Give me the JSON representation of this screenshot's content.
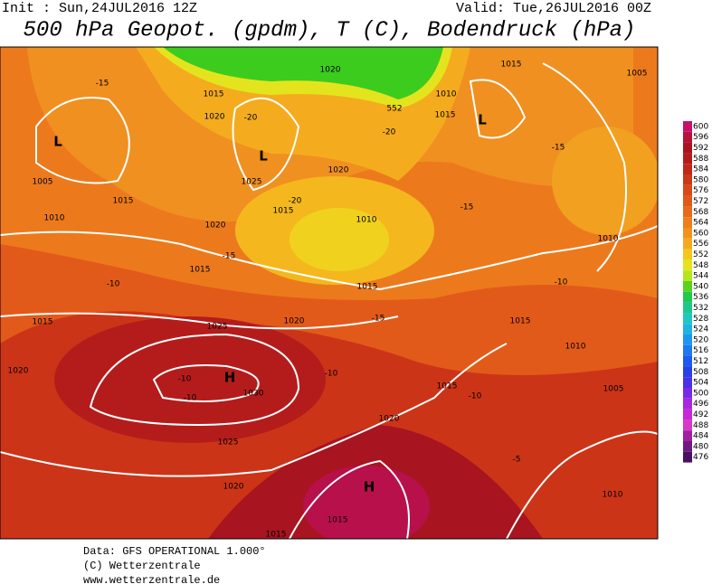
{
  "header": {
    "init": "Init : Sun,24JUL2016 12Z",
    "valid": "Valid: Tue,26JUL2016 00Z",
    "title": "500 hPa Geopot. (gpdm), T (C), Bodendruck (hPa)"
  },
  "colorbar": {
    "levels": [
      600,
      596,
      592,
      588,
      584,
      580,
      576,
      572,
      568,
      564,
      560,
      556,
      552,
      548,
      544,
      540,
      536,
      532,
      528,
      524,
      520,
      516,
      512,
      508,
      504,
      500,
      496,
      492,
      488,
      484,
      480,
      476
    ],
    "colors": [
      "#c8106a",
      "#b8103a",
      "#a81420",
      "#b41c1c",
      "#c02818",
      "#cc3818",
      "#d84818",
      "#e05818",
      "#e86a1c",
      "#ee7e1e",
      "#f2921e",
      "#f4aa1e",
      "#f2c81e",
      "#e4e41e",
      "#b4e61e",
      "#5ad21e",
      "#22c850",
      "#1ec88c",
      "#1ec8c0",
      "#1eb4e0",
      "#1e96f0",
      "#1e78f0",
      "#1e5af0",
      "#2840e8",
      "#4a30e8",
      "#7a28e8",
      "#a828e0",
      "#c828d8",
      "#d838c8",
      "#a020a0",
      "#701880",
      "#481060"
    ]
  },
  "map_labels": [
    "-15",
    "L",
    "1005",
    "1010",
    "1015",
    "1015",
    "1020",
    "-20",
    "L",
    "1025",
    "1020",
    "1020",
    "1020",
    "1010",
    "1015",
    "L",
    "552",
    "-20",
    "1015",
    "1005",
    "-15",
    "-20",
    "1015",
    "1010",
    "-15",
    "-15",
    "1015",
    "-10",
    "1010",
    "1015",
    "-10",
    "1015",
    "1025",
    "1020",
    "-15",
    "1015",
    "1010",
    "1020",
    "-10",
    "H",
    "-10",
    "1030",
    "-10",
    "1015",
    "-10",
    "1005",
    "1020",
    "1025",
    "-5",
    "1020",
    "H",
    "1010",
    "1015",
    "1015"
  ],
  "footer": {
    "data": "Data: GFS OPERATIONAL 1.000°",
    "copyright": "(C) Wetterzentrale",
    "url": "www.wetterzentrale.de"
  }
}
